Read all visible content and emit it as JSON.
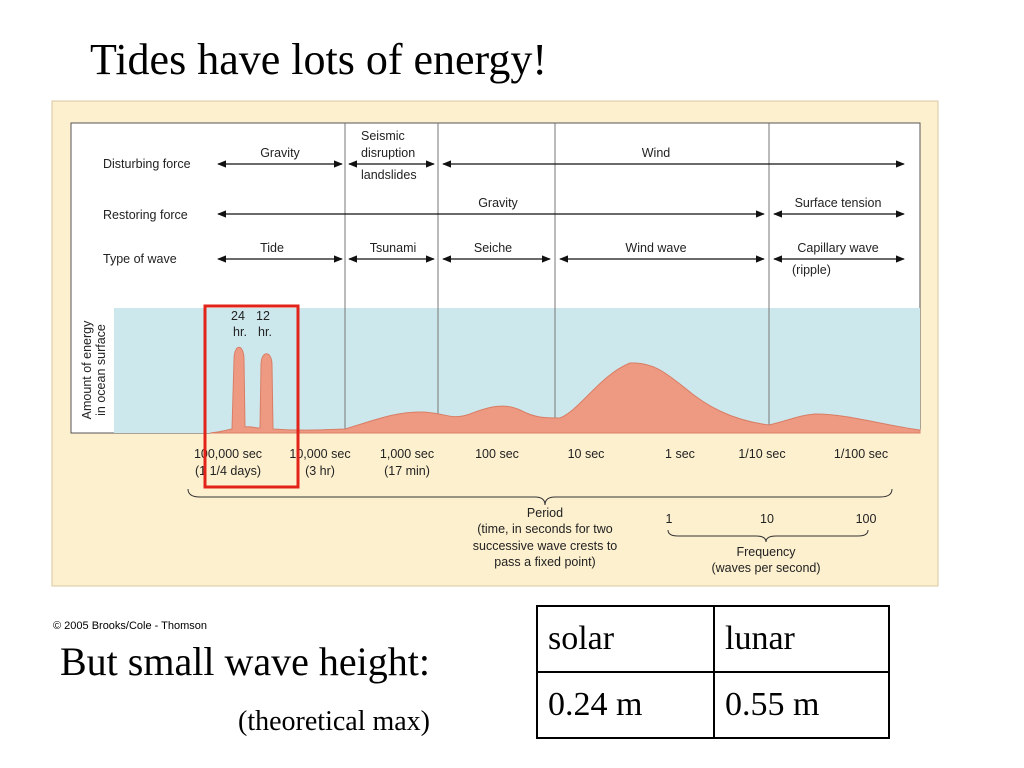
{
  "slide": {
    "title": "Tides have lots of energy!",
    "copyright": "© 2005 Brooks/Cole - Thomson",
    "subheading": "But small wave height:",
    "note": "(theoretical max)"
  },
  "figure": {
    "rows": {
      "disturbing_force": "Disturbing force",
      "restoring_force": "Restoring force",
      "type_of_wave": "Type of wave"
    },
    "disturbing": {
      "gravity": "Gravity",
      "seismic": [
        "Seismic",
        "disruption",
        "landslides"
      ],
      "wind": "Wind"
    },
    "restoring": {
      "gravity": "Gravity",
      "surface_tension": "Surface tension"
    },
    "waves": {
      "tide": "Tide",
      "tsunami": "Tsunami",
      "seiche": "Seiche",
      "wind_wave": "Wind wave",
      "capillary": "Capillary wave",
      "capillary_sub": "(ripple)"
    },
    "y_label": [
      "Amount of energy",
      "in ocean surface"
    ],
    "peak_labels": {
      "p24_a": "24",
      "p24_b": "hr.",
      "p12_a": "12",
      "p12_b": "hr."
    },
    "period_ticks": [
      {
        "value": "100,000 sec",
        "sub": "(1 1/4 days)"
      },
      {
        "value": "10,000 sec",
        "sub": "(3 hr)"
      },
      {
        "value": "1,000 sec",
        "sub": "(17 min)"
      },
      {
        "value": "100 sec",
        "sub": ""
      },
      {
        "value": "10 sec",
        "sub": ""
      },
      {
        "value": "1 sec",
        "sub": ""
      },
      {
        "value": "1/10 sec",
        "sub": ""
      },
      {
        "value": "1/100 sec",
        "sub": ""
      }
    ],
    "period_label": [
      "Period",
      "(time, in seconds for two",
      "successive wave crests to",
      "pass a fixed point)"
    ],
    "frequency_ticks": [
      "1",
      "10",
      "100"
    ],
    "frequency_label": [
      "Frequency",
      "(waves per second)"
    ],
    "colors": {
      "panel_bg": "#fdf0cf",
      "energy_bg": "#cce8ec",
      "curve": "#ee9a82",
      "highlight": "#e2231a"
    }
  },
  "table": {
    "headers": [
      "solar",
      "lunar"
    ],
    "values": [
      "0.24 m",
      "0.55 m"
    ]
  }
}
